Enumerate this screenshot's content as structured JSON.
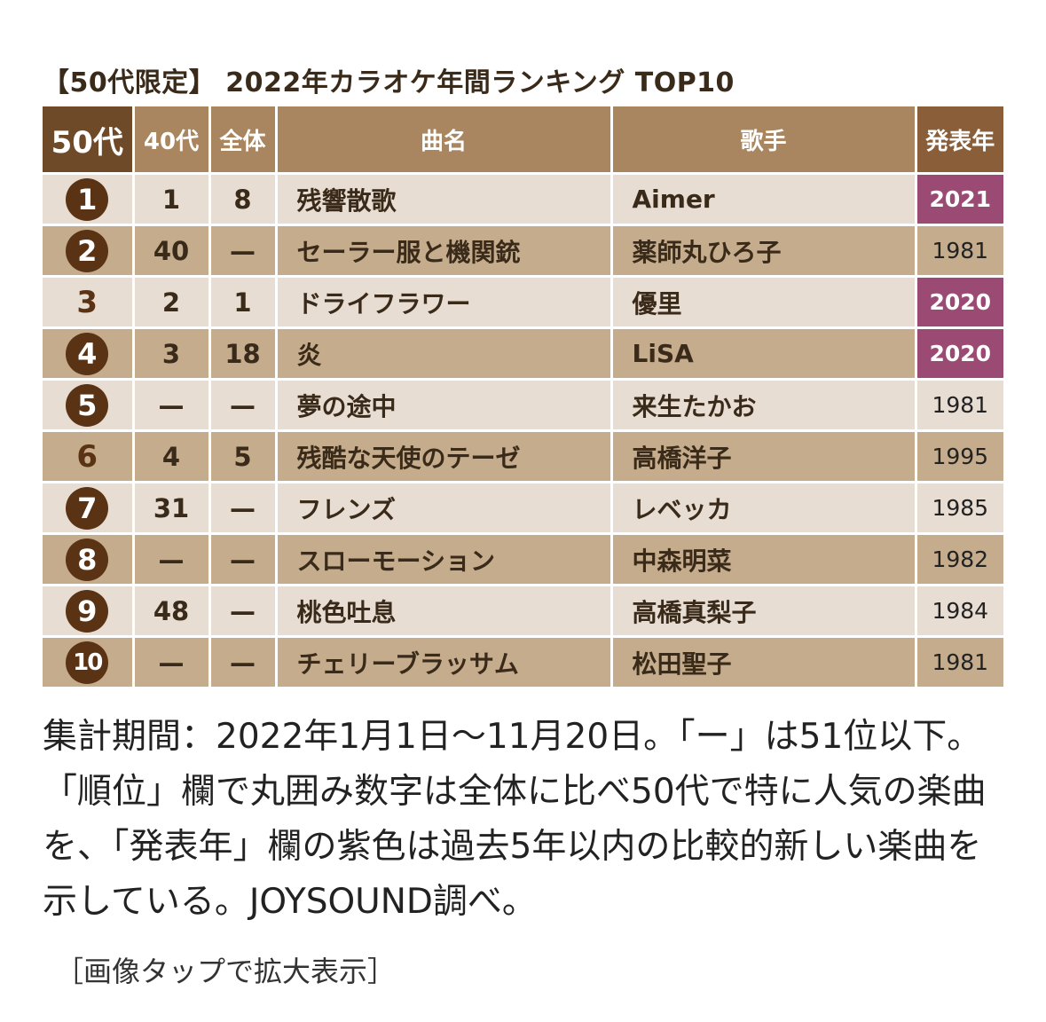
{
  "title": "【50代限定】 2022年カラオケ年間ランキング TOP10",
  "headers": {
    "rank50": "50代",
    "rank40": "40代",
    "overall": "全体",
    "song": "曲名",
    "artist": "歌手",
    "year": "発表年"
  },
  "rows": [
    {
      "rank": "1",
      "circled": true,
      "r40": "1",
      "overall": "8",
      "song": "残響散歌",
      "artist": "Aimer",
      "year": "2021",
      "recent": true
    },
    {
      "rank": "2",
      "circled": true,
      "r40": "40",
      "overall": "—",
      "song": "セーラー服と機関銃",
      "artist": "薬師丸ひろ子",
      "year": "1981",
      "recent": false
    },
    {
      "rank": "3",
      "circled": false,
      "r40": "2",
      "overall": "1",
      "song": "ドライフラワー",
      "artist": "優里",
      "year": "2020",
      "recent": true
    },
    {
      "rank": "4",
      "circled": true,
      "r40": "3",
      "overall": "18",
      "song": "炎",
      "artist": "LiSA",
      "year": "2020",
      "recent": true
    },
    {
      "rank": "5",
      "circled": true,
      "r40": "—",
      "overall": "—",
      "song": "夢の途中",
      "artist": "来生たかお",
      "year": "1981",
      "recent": false
    },
    {
      "rank": "6",
      "circled": false,
      "r40": "4",
      "overall": "5",
      "song": "残酷な天使のテーゼ",
      "artist": "高橋洋子",
      "year": "1995",
      "recent": false
    },
    {
      "rank": "7",
      "circled": true,
      "r40": "31",
      "overall": "—",
      "song": "フレンズ",
      "artist": "レベッカ",
      "year": "1985",
      "recent": false
    },
    {
      "rank": "8",
      "circled": true,
      "r40": "—",
      "overall": "—",
      "song": "スローモーション",
      "artist": "中森明菜",
      "year": "1982",
      "recent": false
    },
    {
      "rank": "9",
      "circled": true,
      "r40": "48",
      "overall": "—",
      "song": "桃色吐息",
      "artist": "高橋真梨子",
      "year": "1984",
      "recent": false
    },
    {
      "rank": "10",
      "circled": true,
      "r40": "—",
      "overall": "—",
      "song": "チェリーブラッサム",
      "artist": "松田聖子",
      "year": "1981",
      "recent": false
    }
  ],
  "note": "集計期間：2022年1月1日〜11月20日。「ー」は51位以下。「順位」欄で丸囲み数字は全体に比べ50代で特に人気の楽曲を、「発表年」欄の紫色は過去5年以内の比較的新しい楽曲を示している。JOYSOUND調べ。",
  "tap_hint": "［画像タップで拡大表示］",
  "colors": {
    "header_dark": "#6e4a28",
    "header": "#a9865f",
    "row_light": "#e8ddd3",
    "row_dark": "#c4ac8c",
    "recent_year": "#9a4a73",
    "rank_circle": "#5a3315"
  }
}
